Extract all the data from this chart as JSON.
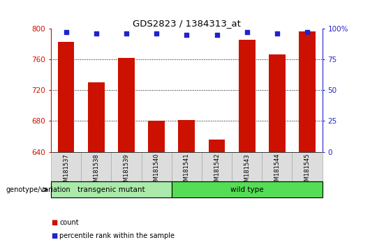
{
  "title": "GDS2823 / 1384313_at",
  "samples": [
    "GSM181537",
    "GSM181538",
    "GSM181539",
    "GSM181540",
    "GSM181541",
    "GSM181542",
    "GSM181543",
    "GSM181544",
    "GSM181545"
  ],
  "counts": [
    783,
    730,
    762,
    680,
    681,
    656,
    785,
    766,
    796
  ],
  "percentile_ranks": [
    97,
    96,
    96,
    96,
    95,
    95,
    97,
    96,
    97
  ],
  "groups": [
    {
      "label": "transgenic mutant",
      "start": 0,
      "end": 4
    },
    {
      "label": "wild type",
      "start": 4,
      "end": 9
    }
  ],
  "ylim_left": [
    640,
    800
  ],
  "ylim_right": [
    0,
    100
  ],
  "yticks_left": [
    640,
    680,
    720,
    760,
    800
  ],
  "yticks_right": [
    0,
    25,
    50,
    75,
    100
  ],
  "bar_color": "#CC1100",
  "dot_color": "#2222CC",
  "bar_width": 0.55,
  "label_count": "count",
  "label_percentile": "percentile rank within the sample",
  "genotype_label": "genotype/variation",
  "group_colors": [
    "#AAEAAA",
    "#55DD55"
  ]
}
